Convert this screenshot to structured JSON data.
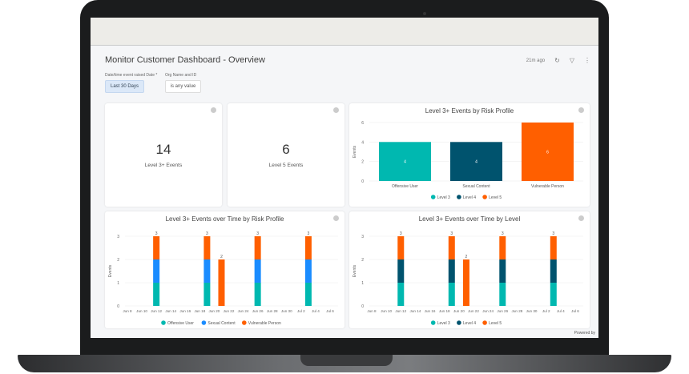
{
  "dashboard": {
    "title": "Monitor Customer Dashboard - Overview",
    "last_updated": "21m ago",
    "icons": [
      "refresh-icon",
      "filter-icon",
      "more-vert-icon"
    ],
    "powered_by": "Powered by"
  },
  "filters": [
    {
      "label": "Date/time event raised Date *",
      "value": "Last 30 Days"
    },
    {
      "label": "Org Name and ID",
      "value": "is any value"
    }
  ],
  "kpis": [
    {
      "value": "14",
      "label": "Level 3+ Events"
    },
    {
      "value": "6",
      "label": "Level 5 Events"
    }
  ],
  "colors": {
    "offensive_user": "#00b8b0",
    "sexual_content": "#1a8cff",
    "vulnerable_person": "#ff5f00",
    "level_3": "#00b8b0",
    "level_4": "#00536e",
    "level_5": "#ff5f00"
  },
  "chart_data": [
    {
      "type": "bar",
      "title": "Level 3+ Events by Risk Profile",
      "ylabel": "Events",
      "ylim": [
        0,
        6
      ],
      "yticks": [
        0,
        2,
        4,
        6
      ],
      "categories": [
        "Offensive User",
        "Sexual Content",
        "Vulnerable Person"
      ],
      "series": [
        {
          "name": "Level 3",
          "color": "#00b8b0",
          "values": [
            4,
            0,
            0
          ]
        },
        {
          "name": "Level 4",
          "color": "#00536e",
          "values": [
            0,
            4,
            0
          ]
        },
        {
          "name": "Level 5",
          "color": "#ff5f00",
          "values": [
            0,
            0,
            6
          ]
        }
      ],
      "totals": [
        4,
        4,
        6
      ],
      "legend": "bottom",
      "grid": true
    },
    {
      "type": "bar",
      "stacked": true,
      "title": "Level 3+ Events over Time by Risk Profile",
      "ylabel": "Events",
      "ylim": [
        0,
        3
      ],
      "yticks": [
        0,
        1,
        2,
        3
      ],
      "xticks": [
        "Jun 8",
        "Jun 10",
        "Jun 12",
        "Jun 14",
        "Jun 16",
        "Jun 18",
        "Jun 20",
        "Jun 22",
        "Jun 24",
        "Jun 26",
        "Jun 28",
        "Jun 30",
        "Jul 2",
        "Jul 4",
        "Jul 6"
      ],
      "x": [
        "Jun 12",
        "Jun 19",
        "Jun 21",
        "Jun 26",
        "Jul 3"
      ],
      "series": [
        {
          "name": "Offensive User",
          "color": "#00b8b0",
          "values": [
            1,
            1,
            0,
            1,
            1
          ]
        },
        {
          "name": "Sexual Content",
          "color": "#1a8cff",
          "values": [
            1,
            1,
            0,
            1,
            1
          ]
        },
        {
          "name": "Vulnerable Person",
          "color": "#ff5f00",
          "values": [
            1,
            1,
            2,
            1,
            1
          ]
        }
      ],
      "totals": [
        3,
        3,
        2,
        3,
        3
      ],
      "legend": "bottom",
      "grid": true
    },
    {
      "type": "bar",
      "stacked": true,
      "title": "Level 3+ Events over Time by Level",
      "ylabel": "Events",
      "ylim": [
        0,
        3
      ],
      "yticks": [
        0,
        1,
        2,
        3
      ],
      "xticks": [
        "Jun 8",
        "Jun 10",
        "Jun 12",
        "Jun 14",
        "Jun 16",
        "Jun 18",
        "Jun 20",
        "Jun 22",
        "Jun 24",
        "Jun 26",
        "Jun 28",
        "Jun 30",
        "Jul 2",
        "Jul 4",
        "Jul 6"
      ],
      "x": [
        "Jun 12",
        "Jun 19",
        "Jun 21",
        "Jun 26",
        "Jul 3"
      ],
      "series": [
        {
          "name": "Level 3",
          "color": "#00b8b0",
          "values": [
            1,
            1,
            0,
            1,
            1
          ]
        },
        {
          "name": "Level 4",
          "color": "#00536e",
          "values": [
            1,
            1,
            0,
            1,
            1
          ]
        },
        {
          "name": "Level 5",
          "color": "#ff5f00",
          "values": [
            1,
            1,
            2,
            1,
            1
          ]
        }
      ],
      "totals": [
        3,
        3,
        2,
        3,
        3
      ],
      "legend": "bottom",
      "grid": true
    }
  ]
}
